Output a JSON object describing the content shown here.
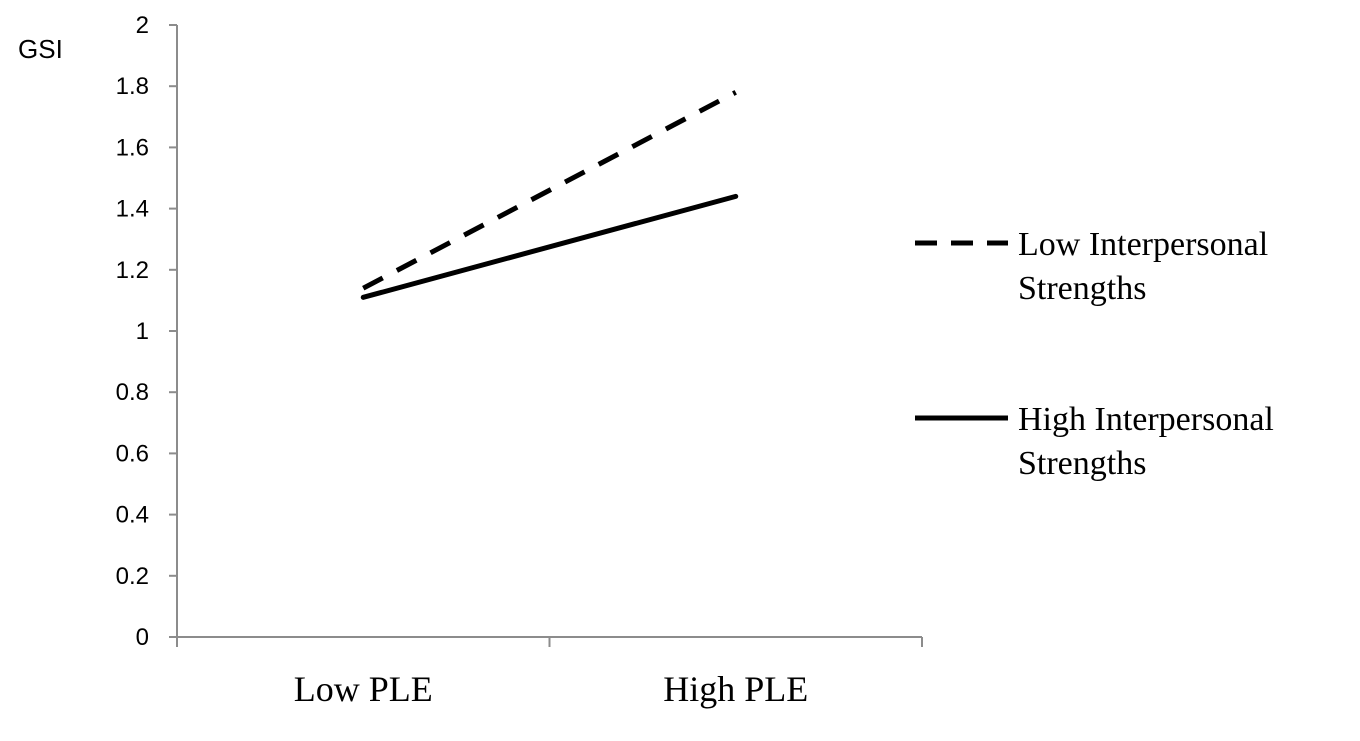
{
  "chart_data": {
    "type": "line",
    "title": "",
    "xlabel": "",
    "ylabel": "GSI",
    "categories": [
      "Low PLE",
      "High PLE"
    ],
    "ylim": [
      0,
      2
    ],
    "yticks": [
      0,
      0.2,
      0.4,
      0.6,
      0.8,
      1,
      1.2,
      1.4,
      1.6,
      1.8,
      2
    ],
    "ytick_labels": [
      "0",
      "0.2",
      "0.4",
      "0.6",
      "0.8",
      "1",
      "1.2",
      "1.4",
      "1.6",
      "1.8",
      "2"
    ],
    "grid": false,
    "legend_position": "right",
    "series": [
      {
        "name": "Low Interpersonal Strengths",
        "name_lines": [
          "Low Interpersonal",
          "Strengths"
        ],
        "values": [
          1.14,
          1.78
        ],
        "style": "dashed",
        "color": "#000000"
      },
      {
        "name": "High Interpersonal Strengths",
        "name_lines": [
          "High Interpersonal",
          "Strengths"
        ],
        "values": [
          1.11,
          1.44
        ],
        "style": "solid",
        "color": "#000000"
      }
    ]
  }
}
